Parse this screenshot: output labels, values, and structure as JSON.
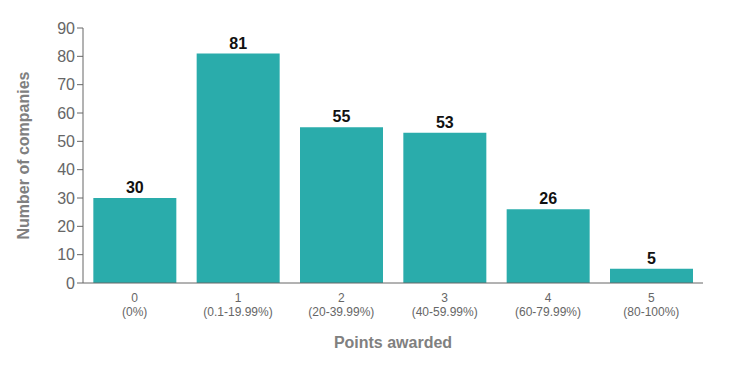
{
  "chart_data": {
    "type": "bar",
    "categories": [
      "0\n(0%)",
      "1\n(0.1-19.99%)",
      "2\n(20-39.99%)",
      "3\n(40-59.99%)",
      "4\n(60-79.99%)",
      "5\n(80-100%)"
    ],
    "values": [
      30,
      81,
      55,
      53,
      26,
      5
    ],
    "color": "#2AACAB",
    "xlabel": "Points awarded",
    "ylabel": "Number of companies",
    "ylim": [
      0,
      90
    ],
    "yticks": [
      0,
      10,
      20,
      30,
      40,
      50,
      60,
      70,
      80,
      90
    ],
    "grid": false,
    "data_labels": true
  }
}
